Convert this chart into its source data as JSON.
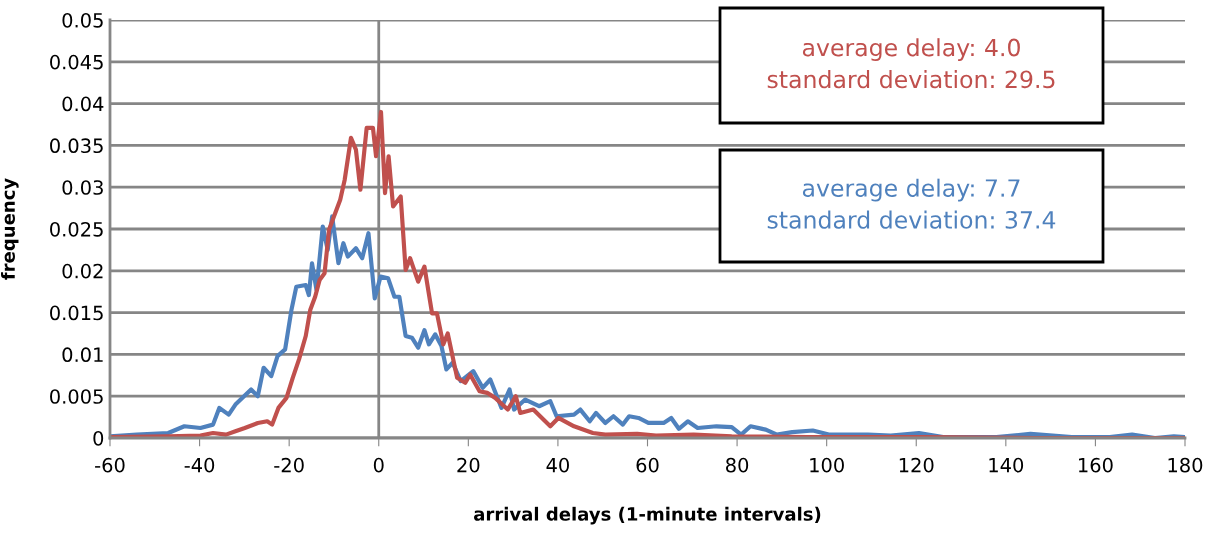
{
  "chart_data": {
    "type": "line",
    "xlabel": "arrival delays (1-minute intervals)",
    "ylabel": "frequency",
    "xlim": [
      -60,
      180
    ],
    "xticks": [
      -60,
      -40,
      -20,
      0,
      20,
      40,
      60,
      80,
      100,
      120,
      140,
      160,
      180
    ],
    "ylim": [
      0,
      0.05
    ],
    "yticks": [
      0,
      0.005,
      0.01,
      0.015,
      0.02,
      0.025,
      0.03,
      0.035,
      0.04,
      0.045,
      0.05
    ],
    "grid": "y",
    "legend": false,
    "ref_lines": [
      {
        "axis": "x",
        "value": 0,
        "color": "#868686"
      }
    ],
    "line_style": "solid",
    "marker": "none",
    "series": [
      {
        "color": "#4f81bd",
        "x": [
          -60,
          -54,
          -47,
          -43.4,
          -39.8,
          -37,
          -35.6,
          -33.5,
          -32,
          -28.5,
          -27,
          -25.7,
          -24,
          -22.6,
          -20.9,
          -19.5,
          -18.4,
          -16.3,
          -15.6,
          -14.9,
          -13.9,
          -12.5,
          -11.4,
          -10.4,
          -9,
          -7.9,
          -6.9,
          -5.1,
          -3.7,
          -2.3,
          -0.9,
          0.4,
          2.1,
          3.5,
          4.6,
          6,
          7.4,
          8.8,
          10.2,
          11.2,
          12.6,
          14,
          15.1,
          16.5,
          18.3,
          21.1,
          23.2,
          24.9,
          27.4,
          29.2,
          30.2,
          32.7,
          35.8,
          38.3,
          39.7,
          43.6,
          45,
          47.1,
          48.5,
          50.6,
          52.4,
          54.5,
          55.9,
          58,
          60.2,
          63.6,
          65.3,
          67,
          69,
          71.2,
          75.4,
          78.8,
          80.9,
          83,
          86.4,
          88.9,
          92.3,
          96.9,
          100.7,
          109.2,
          114.3,
          120.6,
          126,
          137.9,
          145.5,
          154.7,
          163.2,
          168.2,
          173.3,
          177.5,
          180
        ],
        "values": [
          0.0002,
          0.0004,
          0.0006,
          0.0014,
          0.0012,
          0.0016,
          0.0036,
          0.0028,
          0.004,
          0.0058,
          0.005,
          0.0084,
          0.0074,
          0.0098,
          0.0106,
          0.0153,
          0.0181,
          0.0183,
          0.0171,
          0.0209,
          0.0177,
          0.0253,
          0.0225,
          0.0265,
          0.0209,
          0.0233,
          0.0217,
          0.0227,
          0.0215,
          0.0245,
          0.0167,
          0.0193,
          0.0191,
          0.0169,
          0.0169,
          0.0122,
          0.012,
          0.0108,
          0.0129,
          0.0112,
          0.0124,
          0.011,
          0.0082,
          0.009,
          0.0068,
          0.008,
          0.006,
          0.007,
          0.0036,
          0.0058,
          0.0034,
          0.0046,
          0.0038,
          0.0044,
          0.0026,
          0.0028,
          0.0034,
          0.002,
          0.003,
          0.0018,
          0.0026,
          0.0016,
          0.0026,
          0.0024,
          0.0018,
          0.0018,
          0.0024,
          0.0011,
          0.002,
          0.0012,
          0.0014,
          0.0013,
          0.0004,
          0.0014,
          0.001,
          0.0004,
          0.0007,
          0.0009,
          0.0004,
          0.0004,
          0.0003,
          0.0006,
          0.0001,
          0.0001,
          0.0005,
          0.0001,
          0.0001,
          0.0004,
          0.0,
          0.0002,
          0.0001
        ]
      },
      {
        "color": "#c0504d",
        "x": [
          -60,
          -47,
          -39.8,
          -37,
          -34.1,
          -32,
          -29.9,
          -27,
          -24.9,
          -23.8,
          -22.4,
          -20.6,
          -19.2,
          -17.8,
          -16.3,
          -15.3,
          -14.2,
          -13.2,
          -12.1,
          -11.1,
          -10,
          -8.6,
          -7.6,
          -6.2,
          -5.1,
          -4.1,
          -2.7,
          -1.3,
          -0.6,
          0.5,
          1.4,
          2.2,
          3.2,
          4.9,
          6,
          7,
          8.8,
          10.2,
          11.9,
          13,
          14.4,
          15.4,
          17.5,
          19.3,
          20.4,
          22.5,
          24.2,
          26,
          28.8,
          30.6,
          31.6,
          34.5,
          38.3,
          40.1,
          43.6,
          47.8,
          50.6,
          57.7,
          61.9,
          70.3,
          78.8,
          95.7,
          121,
          146.4,
          180
        ],
        "values": [
          0.0001,
          0.0002,
          0.0003,
          0.0006,
          0.0004,
          0.0008,
          0.0012,
          0.0018,
          0.002,
          0.0016,
          0.0036,
          0.0048,
          0.0072,
          0.0094,
          0.0122,
          0.0153,
          0.0169,
          0.0189,
          0.0197,
          0.0249,
          0.0265,
          0.0285,
          0.0309,
          0.0359,
          0.0345,
          0.0297,
          0.0371,
          0.0371,
          0.0337,
          0.039,
          0.0293,
          0.0337,
          0.0277,
          0.0289,
          0.0201,
          0.0215,
          0.0187,
          0.0205,
          0.0149,
          0.0149,
          0.0112,
          0.0125,
          0.0072,
          0.0066,
          0.0076,
          0.0056,
          0.0054,
          0.0048,
          0.0034,
          0.005,
          0.003,
          0.0034,
          0.0014,
          0.0024,
          0.0014,
          0.0006,
          0.0004,
          0.0005,
          0.0003,
          0.0004,
          0.0002,
          0.0001,
          0.0001,
          0.0,
          0.0
        ]
      }
    ],
    "annotations": [
      "average delay: 4.0\nstandard deviation: 29.5",
      "average delay: 7.7\nstandard deviation: 37.4"
    ]
  }
}
